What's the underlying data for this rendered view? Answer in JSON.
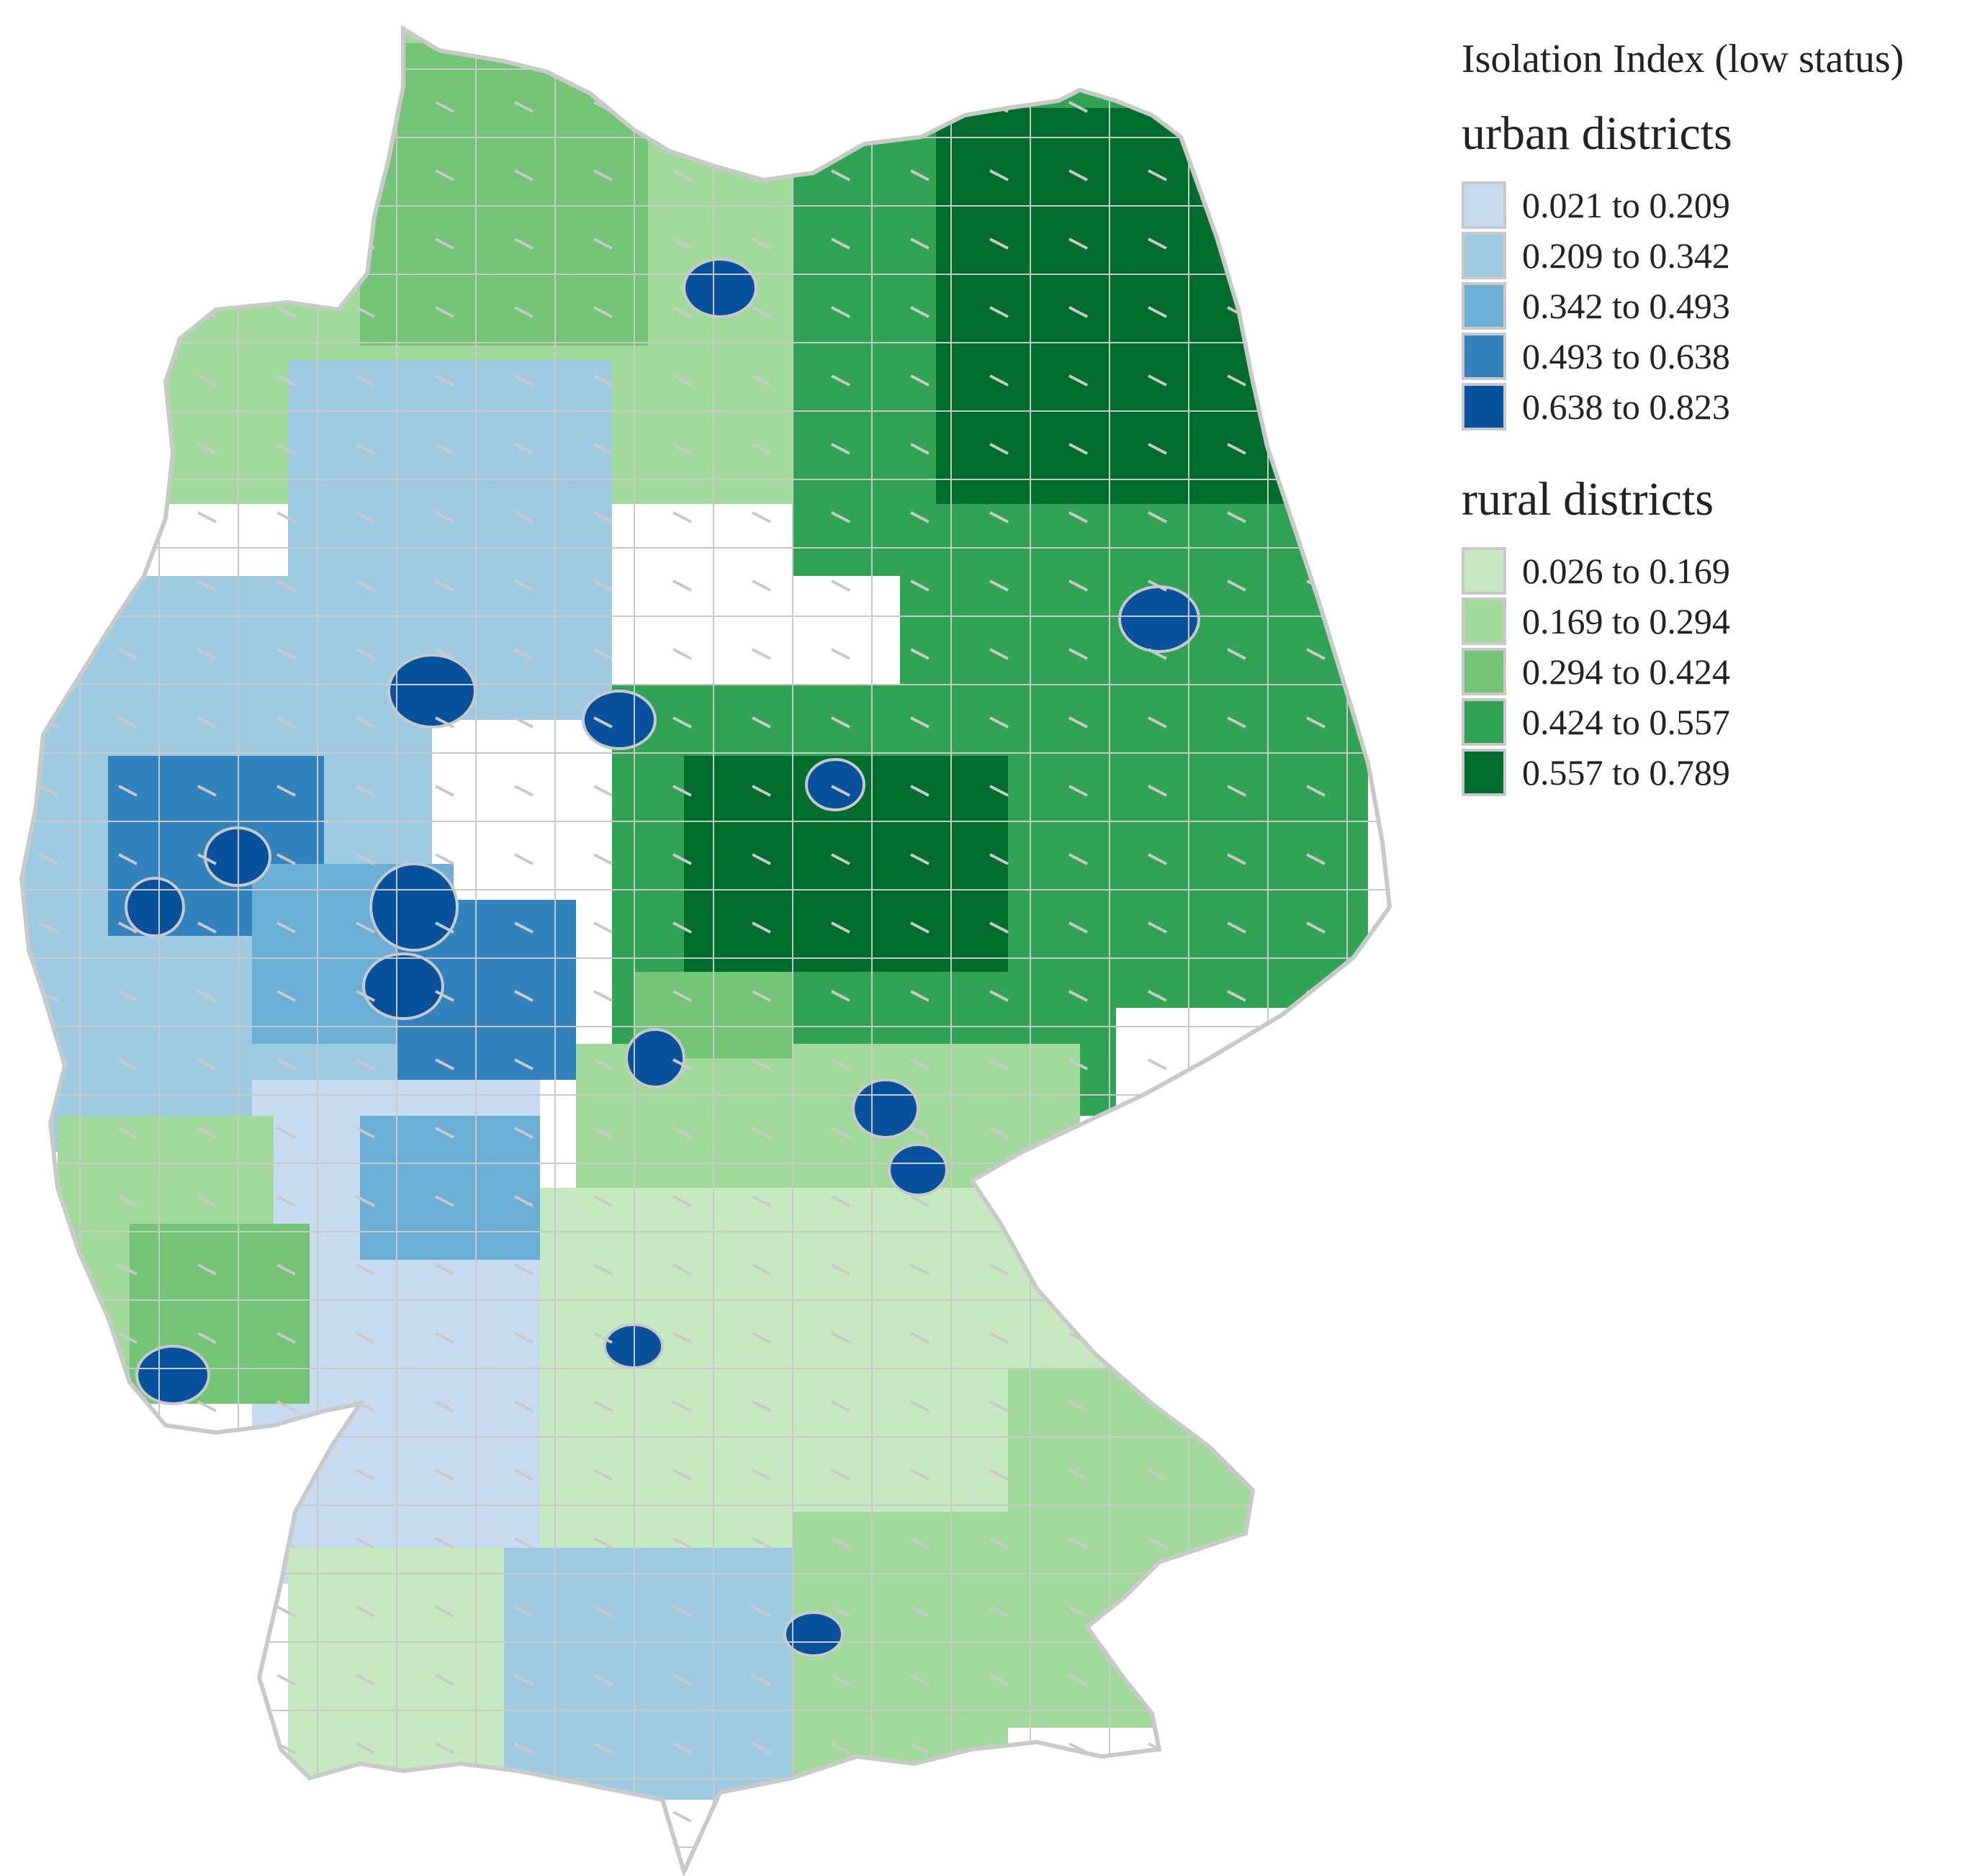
{
  "legend": {
    "title": "Isolation Index (low status)",
    "urban": {
      "title": "urban districts",
      "classes": [
        {
          "label": "0.021 to 0.209",
          "color": "#c6dbef"
        },
        {
          "label": "0.209 to 0.342",
          "color": "#9ecae1"
        },
        {
          "label": "0.342 to 0.493",
          "color": "#6baed6"
        },
        {
          "label": "0.493 to 0.638",
          "color": "#3182bd"
        },
        {
          "label": "0.638 to 0.823",
          "color": "#08519c"
        }
      ]
    },
    "rural": {
      "title": "rural districts",
      "classes": [
        {
          "label": "0.026 to 0.169",
          "color": "#c7e9c0"
        },
        {
          "label": "0.169 to 0.294",
          "color": "#a1d99b"
        },
        {
          "label": "0.294 to 0.424",
          "color": "#74c476"
        },
        {
          "label": "0.424 to 0.557",
          "color": "#31a354"
        },
        {
          "label": "0.557 to 0.789",
          "color": "#006d2c"
        }
      ]
    }
  },
  "colors": {
    "border": "#c9c9c9",
    "background": "#ffffff"
  }
}
